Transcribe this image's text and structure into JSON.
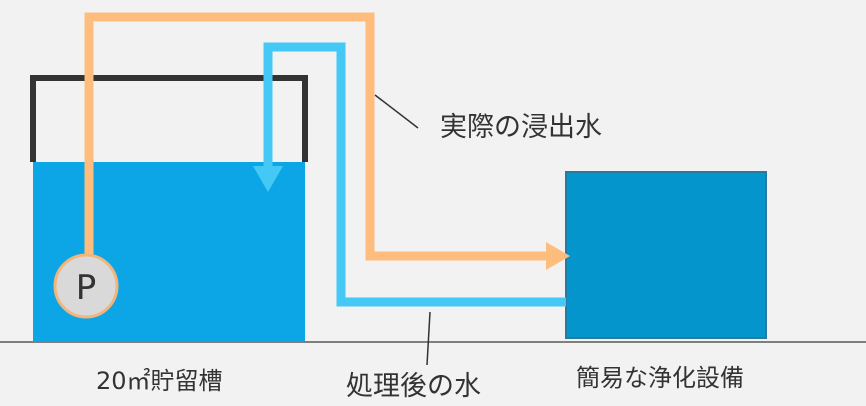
{
  "labels": {
    "actual_leachate": "実際の浸出水",
    "treated_water": "処理後の水",
    "storage_tank": "20㎡貯留槽",
    "purification_facility": "簡易な浄化設備",
    "pump": "P"
  },
  "colors": {
    "background": "#f2f2f2",
    "tank_water": "#0ca6e6",
    "tank_outline": "#333333",
    "facility": "#0395cc",
    "facility_border": "#2a7aa0",
    "actual_pipe": "#ffbd7d",
    "treated_pipe": "#44c8f5",
    "pump_fill": "#d9d9d9",
    "pump_border": "#f3b57a",
    "ground_line": "#7f7f7f",
    "leader_line": "#333333"
  }
}
